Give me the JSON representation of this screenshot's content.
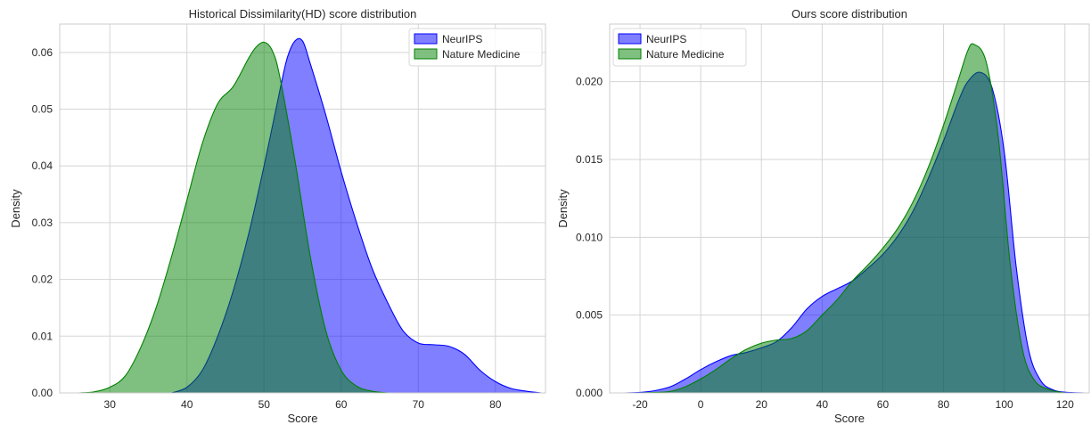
{
  "chart_data": [
    {
      "type": "area",
      "title": "Historical Dissimilarity(HD) score distribution",
      "xlabel": "Score",
      "ylabel": "Density",
      "xlim": [
        23.5,
        86.5
      ],
      "ylim": [
        0,
        0.065
      ],
      "xticks": [
        30,
        40,
        50,
        60,
        70,
        80
      ],
      "yticks": [
        0.0,
        0.01,
        0.02,
        0.03,
        0.04,
        0.05,
        0.06
      ],
      "yticks_labels": [
        "0.00",
        "0.01",
        "0.02",
        "0.03",
        "0.04",
        "0.05",
        "0.06"
      ],
      "grid": true,
      "legend_position": "top-right",
      "series": [
        {
          "name": "NeurIPS",
          "color": "#0000ff",
          "x": [
            38,
            40,
            42,
            44,
            46,
            48,
            50,
            52,
            53,
            54,
            55,
            56,
            58,
            60,
            62,
            64,
            66,
            68,
            70,
            72,
            74,
            76,
            78,
            80,
            82,
            84,
            86
          ],
          "y": [
            0.0,
            0.001,
            0.004,
            0.01,
            0.018,
            0.028,
            0.04,
            0.053,
            0.059,
            0.062,
            0.062,
            0.058,
            0.049,
            0.039,
            0.03,
            0.022,
            0.016,
            0.011,
            0.0088,
            0.0085,
            0.0082,
            0.0068,
            0.004,
            0.002,
            0.0008,
            0.0003,
            0.0
          ]
        },
        {
          "name": "Nature Medicine",
          "color": "#008000",
          "x": [
            26,
            28,
            30,
            32,
            34,
            36,
            38,
            40,
            42,
            44,
            46,
            48,
            49,
            50,
            51,
            52,
            54,
            56,
            58,
            60,
            62,
            64,
            66
          ],
          "y": [
            0.0,
            0.0002,
            0.001,
            0.003,
            0.008,
            0.015,
            0.024,
            0.034,
            0.044,
            0.051,
            0.054,
            0.059,
            0.061,
            0.0618,
            0.0605,
            0.056,
            0.041,
            0.024,
            0.011,
            0.004,
            0.0012,
            0.0003,
            0.0
          ]
        }
      ]
    },
    {
      "type": "area",
      "title": "Ours score distribution",
      "xlabel": "Score",
      "ylabel": "Density",
      "xlim": [
        -30,
        128
      ],
      "ylim": [
        0,
        0.0237
      ],
      "xticks": [
        -20,
        0,
        20,
        40,
        60,
        80,
        100,
        120
      ],
      "yticks": [
        0.0,
        0.005,
        0.01,
        0.015,
        0.02
      ],
      "yticks_labels": [
        "0.000",
        "0.005",
        "0.010",
        "0.015",
        "0.020"
      ],
      "grid": true,
      "legend_position": "top-left",
      "series": [
        {
          "name": "NeurIPS",
          "color": "#0000ff",
          "x": [
            -25,
            -20,
            -15,
            -10,
            -5,
            0,
            5,
            10,
            15,
            20,
            25,
            30,
            35,
            40,
            45,
            50,
            55,
            60,
            65,
            70,
            75,
            80,
            85,
            88,
            92,
            96,
            100,
            104,
            108,
            112,
            116,
            120,
            127
          ],
          "y": [
            0.0,
            3e-05,
            0.00015,
            0.0004,
            0.0009,
            0.0015,
            0.002,
            0.0024,
            0.0026,
            0.0029,
            0.0033,
            0.0042,
            0.0054,
            0.0062,
            0.0067,
            0.0072,
            0.008,
            0.0089,
            0.0101,
            0.0117,
            0.0138,
            0.0162,
            0.0188,
            0.02,
            0.0206,
            0.0196,
            0.0155,
            0.008,
            0.0028,
            0.0008,
            0.0002,
            5e-05,
            0.0
          ]
        },
        {
          "name": "Nature Medicine",
          "color": "#008000",
          "x": [
            -20,
            -15,
            -10,
            -5,
            0,
            5,
            10,
            15,
            20,
            25,
            30,
            35,
            40,
            45,
            50,
            55,
            60,
            65,
            70,
            75,
            80,
            85,
            88,
            90,
            94,
            98,
            102,
            106,
            110,
            115,
            120
          ],
          "y": [
            0.0,
            3e-05,
            0.0001,
            0.0004,
            0.0009,
            0.0015,
            0.0022,
            0.0028,
            0.0032,
            0.0034,
            0.0035,
            0.004,
            0.005,
            0.006,
            0.0072,
            0.0082,
            0.0093,
            0.0106,
            0.0123,
            0.0145,
            0.0172,
            0.0202,
            0.022,
            0.0224,
            0.0213,
            0.0165,
            0.0082,
            0.0028,
            0.0008,
            0.0002,
            0.0
          ]
        }
      ]
    }
  ]
}
